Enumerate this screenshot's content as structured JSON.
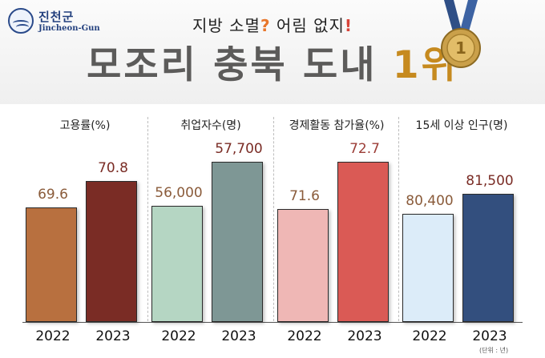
{
  "header": {
    "logo_ko": "진천군",
    "logo_en": "Jincheon-Gun",
    "subtitle_pre": "지방 소멸",
    "subtitle_q": "?",
    "subtitle_post": " 어림 없지",
    "subtitle_bang": "!",
    "title_main": "모조리 충북 도내 ",
    "title_rank": "1위"
  },
  "unit_note": "(단위 : 년)",
  "colors": {
    "employment_rate": [
      "#b8703f",
      "#7a2c25"
    ],
    "employed_persons": [
      "#b5d6c3",
      "#7e9795"
    ],
    "participation_rate": [
      "#efb7b5",
      "#da5a55"
    ],
    "population_15plus": [
      "#dcecf9",
      "#334f7e"
    ]
  },
  "chart_data": {
    "type": "bar",
    "categories": [
      "2022",
      "2023"
    ],
    "panels": [
      {
        "title": "고용률(%)",
        "values": [
          69.6,
          70.8
        ],
        "labels": [
          "69.6",
          "70.8"
        ]
      },
      {
        "title": "취업자수(명)",
        "values": [
          56000,
          57700
        ],
        "labels": [
          "56,000",
          "57,700"
        ]
      },
      {
        "title": "경제활동 참가율(%)",
        "values": [
          71.6,
          72.7
        ],
        "labels": [
          "71.6",
          "72.7"
        ]
      },
      {
        "title": "15세 이상 인구(명)",
        "values": [
          80400,
          81500
        ],
        "labels": [
          "80,400",
          "81,500"
        ]
      }
    ]
  }
}
